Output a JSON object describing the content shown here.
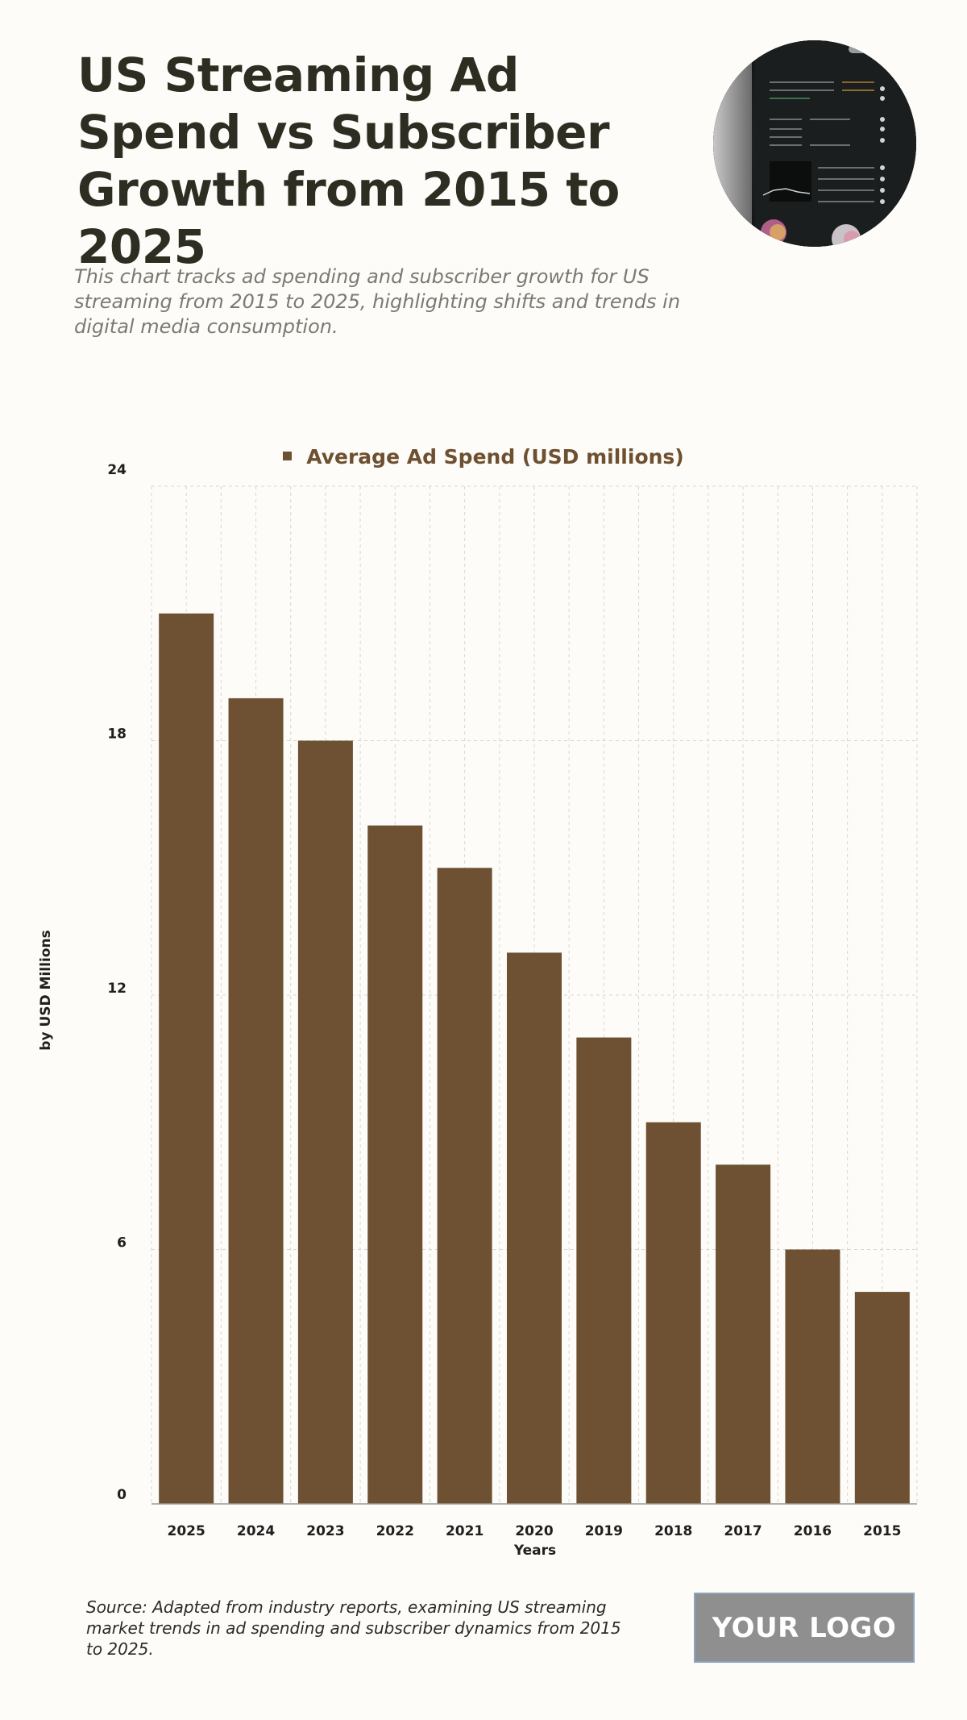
{
  "header": {
    "title": "US Streaming Ad Spend vs Subscriber Growth from 2015 to 2025",
    "subtitle": "This chart tracks ad spending and subscriber growth for US streaming from 2015 to 2025, highlighting shifts and trends in digital media consumption."
  },
  "chart_data": {
    "type": "bar",
    "categories": [
      "2025",
      "2024",
      "2023",
      "2022",
      "2021",
      "2020",
      "2019",
      "2018",
      "2017",
      "2016",
      "2015"
    ],
    "series": [
      {
        "name": "Average Ad Spend (USD millions)",
        "values": [
          21,
          19,
          18,
          16,
          15,
          13,
          11,
          9,
          8,
          6,
          5
        ]
      }
    ],
    "xlabel": "Years",
    "ylabel": "by USD Millions",
    "ylim": [
      0,
      24
    ],
    "yticks": [
      "0",
      "6",
      "12",
      "18",
      "24"
    ],
    "grid": true,
    "legend_position": "top-center",
    "bar_color": "#6e5033"
  },
  "footer": {
    "source": "Source: Adapted from industry reports, examining US streaming market trends in ad spending and subscriber dynamics from 2015 to 2025.",
    "logo_text": "YOUR LOGO"
  },
  "photo": {
    "icon": "editing-app-screenshot-photo"
  }
}
